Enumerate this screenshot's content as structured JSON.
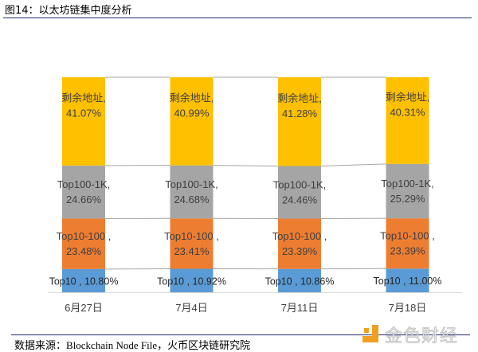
{
  "header": {
    "title": "图14：以太坊链集中度分析"
  },
  "footer": {
    "source": "数据来源：Blockchain Node File，火币区块链研究院",
    "watermark": "金色财经"
  },
  "chart_data": {
    "type": "bar",
    "stacked": true,
    "percent": true,
    "title": "以太坊链集中度分析",
    "categories": [
      "6月27日",
      "7月4日",
      "7月11日",
      "7月18日"
    ],
    "series": [
      {
        "name": "Top10",
        "color": "#5b9bd5",
        "values": [
          10.8,
          10.92,
          10.86,
          11.0
        ],
        "labels": [
          "Top10 , 10.80%",
          "Top10 , 10.92%",
          "Top10 , 10.86%",
          "Top10 , 11.00%"
        ]
      },
      {
        "name": "Top10-100",
        "color": "#ed7d31",
        "values": [
          23.48,
          23.41,
          23.39,
          23.39
        ],
        "labels": [
          [
            "Top10-100 ,",
            "23.48%"
          ],
          [
            "Top10-100 ,",
            "23.41%"
          ],
          [
            "Top10-100 ,",
            "23.39%"
          ],
          [
            "Top10-100 ,",
            "23.39%"
          ]
        ]
      },
      {
        "name": "Top100-1K",
        "color": "#a5a5a5",
        "values": [
          24.66,
          24.68,
          24.46,
          25.29
        ],
        "labels": [
          [
            "Top100-1K,",
            "24.66%"
          ],
          [
            "Top100-1K,",
            "24.68%"
          ],
          [
            "Top100-1K,",
            "24.46%"
          ],
          [
            "Top100-1K,",
            "25.29%"
          ]
        ]
      },
      {
        "name": "剩余地址",
        "color": "#ffc000",
        "values": [
          41.07,
          40.99,
          41.28,
          40.31
        ],
        "labels": [
          [
            "剩余地址,",
            "41.07%"
          ],
          [
            "剩余地址,",
            "40.99%"
          ],
          [
            "剩余地址,",
            "41.28%"
          ],
          [
            "剩余地址,",
            "40.31%"
          ]
        ]
      }
    ],
    "ylim": [
      0,
      100
    ],
    "grid": false,
    "legend": "none",
    "series_lines": true
  }
}
